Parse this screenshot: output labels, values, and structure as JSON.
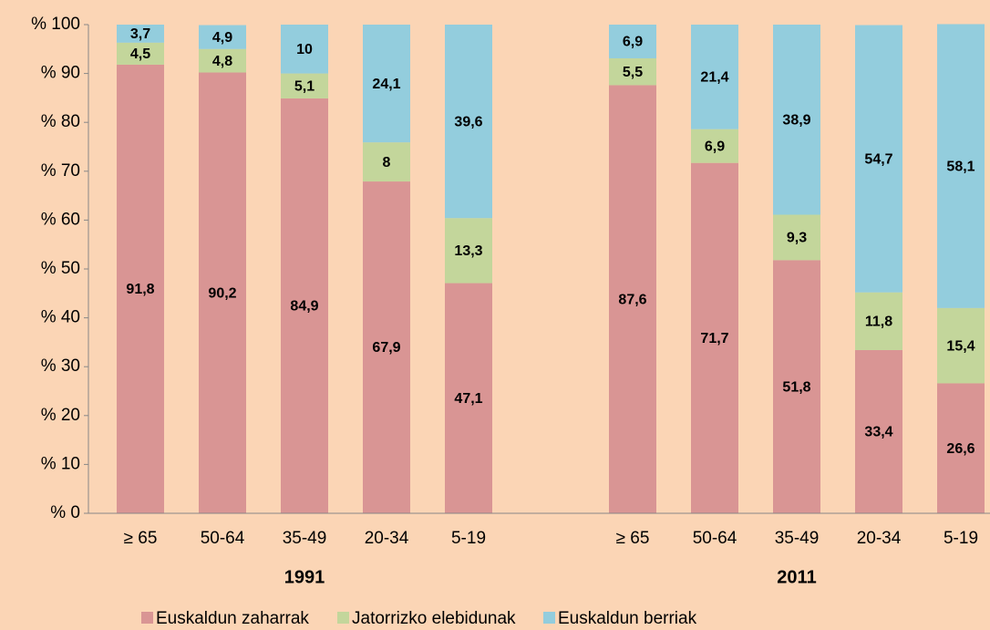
{
  "chart_data": {
    "type": "stacked_bar",
    "categories": [
      "≥  65",
      "50-64",
      "35-49",
      "20-34",
      "5-19",
      null,
      "≥ 65",
      "50-64",
      "35-49",
      "20-34",
      "5-19"
    ],
    "group_labels": [
      "1991",
      "2011"
    ],
    "series": [
      {
        "name": "Euskaldun zaharrak",
        "color": "#d99594",
        "values": [
          91.8,
          90.2,
          84.9,
          67.9,
          47.1,
          null,
          87.6,
          71.7,
          51.8,
          33.4,
          26.6
        ],
        "value_labels": [
          "91,8",
          "90,2",
          "84,9",
          "67,9",
          "47,1",
          null,
          "87,6",
          "71,7",
          "51,8",
          "33,4",
          "26,6"
        ]
      },
      {
        "name": "Jatorrizko elebidunak",
        "color": "#c3d69b",
        "values": [
          4.5,
          4.8,
          5.1,
          8,
          13.3,
          null,
          5.5,
          6.9,
          9.3,
          11.8,
          15.4
        ],
        "value_labels": [
          "4,5",
          "4,8",
          "5,1",
          "8",
          "13,3",
          null,
          "5,5",
          "6,9",
          "9,3",
          "11,8",
          "15,4"
        ]
      },
      {
        "name": "Euskaldun berriak",
        "color": "#93cddd",
        "values": [
          3.7,
          4.9,
          10,
          24.1,
          39.6,
          null,
          6.9,
          21.4,
          38.9,
          54.7,
          58.1
        ],
        "value_labels": [
          "3,7",
          "4,9",
          "10",
          "24,1",
          "39,6",
          null,
          "6,9",
          "21,4",
          "38,9",
          "54,7",
          "58,1"
        ]
      }
    ],
    "ylim": [
      0,
      100
    ],
    "yticks": [
      {
        "value": 0,
        "label": "% 0"
      },
      {
        "value": 10,
        "label": "% 10"
      },
      {
        "value": 20,
        "label": "% 20"
      },
      {
        "value": 30,
        "label": "% 30"
      },
      {
        "value": 40,
        "label": "% 40"
      },
      {
        "value": 50,
        "label": "% 50"
      },
      {
        "value": 60,
        "label": "% 60"
      },
      {
        "value": 70,
        "label": "% 70"
      },
      {
        "value": 80,
        "label": "% 80"
      },
      {
        "value": 90,
        "label": "% 90"
      },
      {
        "value": 100,
        "label": "% 100"
      }
    ],
    "grid": false,
    "legend": "bottom"
  }
}
